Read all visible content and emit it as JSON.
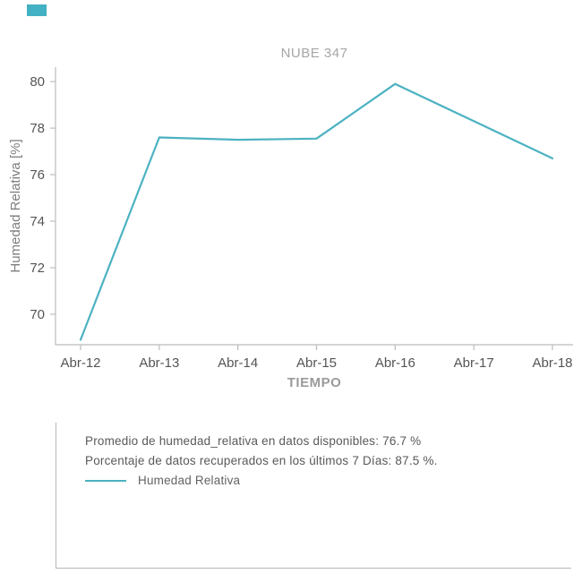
{
  "brand_color": "#41b1c3",
  "chart_data": {
    "type": "line",
    "title": "NUBE 347",
    "xlabel": "TIEMPO",
    "ylabel": "Humedad Relativa [%]",
    "x": [
      "Abr-12",
      "Abr-13",
      "Abr-14",
      "Abr-15",
      "Abr-16",
      "Abr-17",
      "Abr-18"
    ],
    "series": [
      {
        "name": "Humedad Relativa",
        "color": "#4cb2c2",
        "values": [
          68.9,
          77.6,
          77.5,
          77.55,
          79.9,
          78.3,
          76.7
        ]
      }
    ],
    "yticks": [
      70,
      72,
      74,
      76,
      78,
      80
    ],
    "ylim": [
      68.69,
      80.62
    ],
    "grid": false,
    "legend_position": "below-in-info-panel",
    "colors": {
      "axis": "#bcbcbc",
      "tick_label": "#555555",
      "title": "#a6a6a6",
      "ylabel": "#7d7d7d",
      "xlabel": "#9a9a9a"
    }
  },
  "info_panel": {
    "line1": "Promedio de humedad_relativa en datos disponibles: 76.7 %",
    "line2": "Porcentaje de datos recuperados en los últimos 7 Días: 87.5 %.",
    "legend_label": "Humedad Relativa"
  }
}
